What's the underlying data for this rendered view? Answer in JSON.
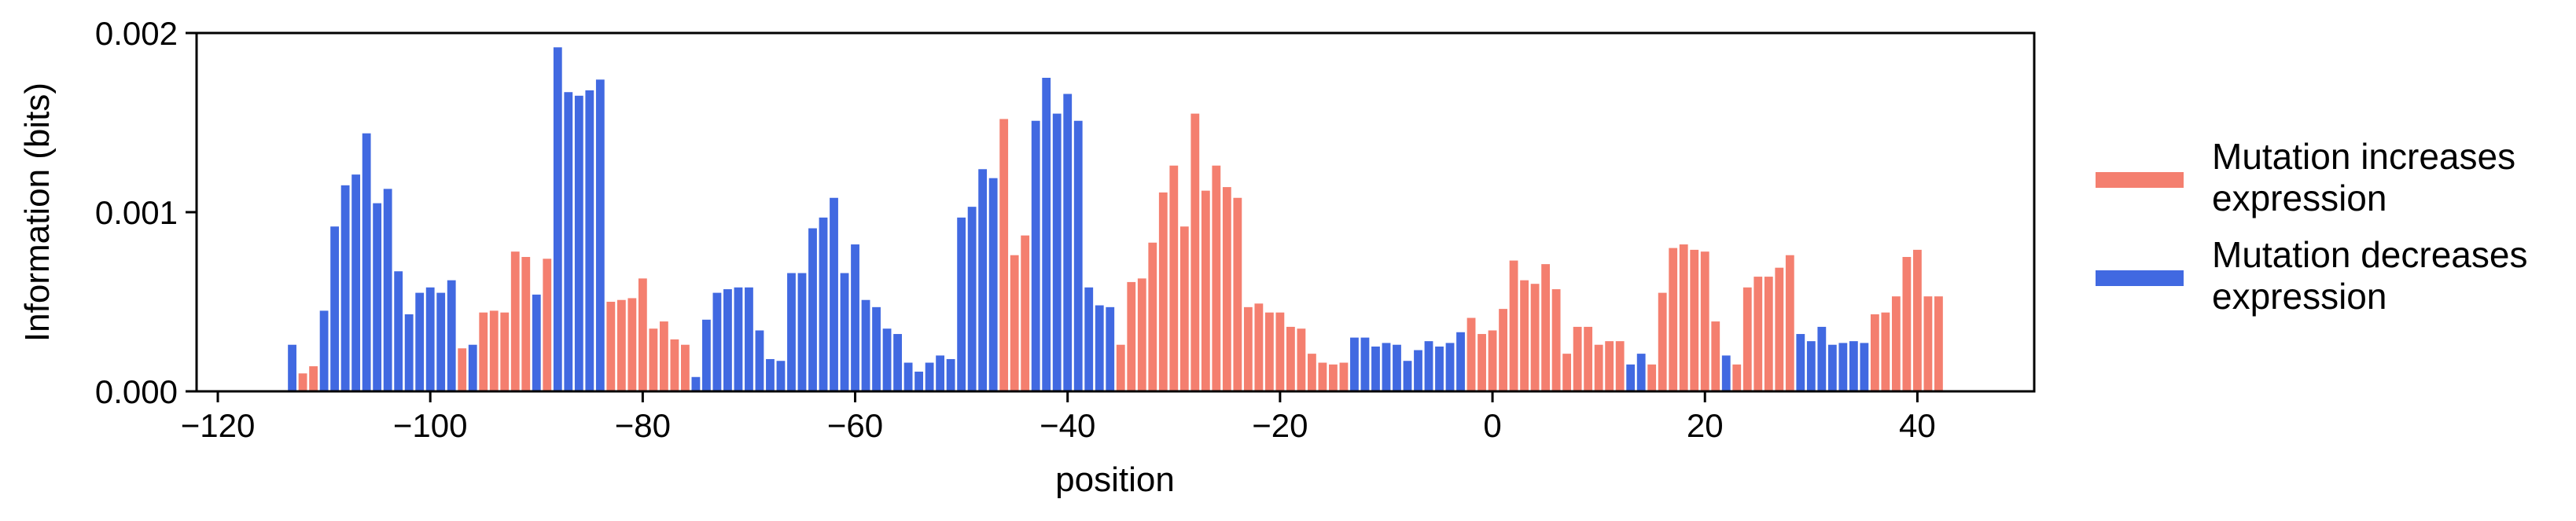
{
  "chart_data": {
    "type": "bar",
    "title": "",
    "xlabel": "position",
    "ylabel": "Information (bits)",
    "xlim": [
      -122,
      51
    ],
    "ylim": [
      0,
      0.002
    ],
    "xticks": [
      -120,
      -100,
      -80,
      -60,
      -40,
      -20,
      0,
      20,
      40
    ],
    "xtick_labels": [
      "−120",
      "−100",
      "−80",
      "−60",
      "−40",
      "−20",
      "0",
      "20",
      "40"
    ],
    "yticks": [
      0,
      0.001,
      0.002
    ],
    "ytick_labels": [
      "0.000",
      "0.001",
      "0.002"
    ],
    "grid": false,
    "legend_position": "right",
    "colors": {
      "increase": "#F47F6F",
      "decrease": "#4169E1"
    },
    "series": [
      {
        "name": "Mutation increases expression",
        "label_lines": [
          "Mutation increases",
          "expression"
        ],
        "color": "#F47F6F"
      },
      {
        "name": "Mutation decreases expression",
        "label_lines": [
          "Mutation decreases",
          "expression"
        ],
        "color": "#4169E1"
      }
    ],
    "x": [
      -113,
      -112,
      -111,
      -110,
      -109,
      -108,
      -107,
      -106,
      -105,
      -104,
      -103,
      -102,
      -101,
      -100,
      -99,
      -98,
      -97,
      -96,
      -95,
      -94,
      -93,
      -92,
      -91,
      -90,
      -89,
      -88,
      -87,
      -86,
      -85,
      -84,
      -83,
      -82,
      -81,
      -80,
      -79,
      -78,
      -77,
      -76,
      -75,
      -74,
      -73,
      -72,
      -71,
      -70,
      -69,
      -68,
      -67,
      -66,
      -65,
      -64,
      -63,
      -62,
      -61,
      -60,
      -59,
      -58,
      -57,
      -56,
      -55,
      -54,
      -53,
      -52,
      -51,
      -50,
      -49,
      -48,
      -47,
      -46,
      -45,
      -44,
      -43,
      -42,
      -41,
      -40,
      -39,
      -38,
      -37,
      -36,
      -35,
      -34,
      -33,
      -32,
      -31,
      -30,
      -29,
      -28,
      -27,
      -26,
      -25,
      -24,
      -23,
      -22,
      -21,
      -20,
      -19,
      -18,
      -17,
      -16,
      -15,
      -14,
      -13,
      -12,
      -11,
      -10,
      -9,
      -8,
      -7,
      -6,
      -5,
      -4,
      -3,
      -2,
      -1,
      0,
      1,
      2,
      3,
      4,
      5,
      6,
      7,
      8,
      9,
      10,
      11,
      12,
      13,
      14,
      15,
      16,
      17,
      18,
      19,
      20,
      21,
      22,
      23,
      24,
      25,
      26,
      27,
      28,
      29,
      30,
      31,
      32,
      33,
      34,
      35,
      36,
      37,
      38,
      39,
      40,
      41,
      42
    ],
    "values": [
      0.00026,
      0.0001,
      0.00014,
      0.00045,
      0.00092,
      0.00115,
      0.00121,
      0.00144,
      0.00105,
      0.00113,
      0.00067,
      0.00043,
      0.00055,
      0.00058,
      0.00055,
      0.00062,
      0.00024,
      0.00026,
      0.00044,
      0.00045,
      0.00044,
      0.00078,
      0.00075,
      0.00054,
      0.00074,
      0.00192,
      0.00167,
      0.00165,
      0.00168,
      0.00174,
      0.0005,
      0.00051,
      0.00052,
      0.00063,
      0.00035,
      0.00039,
      0.00029,
      0.00026,
      8e-05,
      0.0004,
      0.00055,
      0.00057,
      0.00058,
      0.00058,
      0.00034,
      0.00018,
      0.00017,
      0.00066,
      0.00066,
      0.00091,
      0.00097,
      0.00108,
      0.00066,
      0.00082,
      0.00051,
      0.00047,
      0.00035,
      0.00032,
      0.00016,
      0.00011,
      0.00016,
      0.0002,
      0.00018,
      0.00097,
      0.00103,
      0.00124,
      0.00119,
      0.00152,
      0.00076,
      0.00087,
      0.00151,
      0.00175,
      0.00155,
      0.00166,
      0.00151,
      0.00058,
      0.00048,
      0.00047,
      0.00026,
      0.00061,
      0.00063,
      0.00083,
      0.00111,
      0.00126,
      0.00092,
      0.00155,
      0.00112,
      0.00126,
      0.00114,
      0.00108,
      0.00047,
      0.00049,
      0.00044,
      0.00044,
      0.00036,
      0.00035,
      0.00021,
      0.00016,
      0.00015,
      0.00016,
      0.0003,
      0.0003,
      0.00025,
      0.00027,
      0.00026,
      0.00017,
      0.00023,
      0.00028,
      0.00025,
      0.00027,
      0.00033,
      0.00041,
      0.00032,
      0.00034,
      0.00046,
      0.00073,
      0.00062,
      0.0006,
      0.00071,
      0.00057,
      0.00021,
      0.00036,
      0.00036,
      0.00026,
      0.00028,
      0.00028,
      0.00015,
      0.00021,
      0.00015,
      0.00055,
      0.0008,
      0.00082,
      0.00079,
      0.00078,
      0.00039,
      0.0002,
      0.00015,
      0.00058,
      0.00064,
      0.00064,
      0.00069,
      0.00076,
      0.00032,
      0.00028,
      0.00036,
      0.00026,
      0.00027,
      0.00028,
      0.00027,
      0.00043,
      0.00044,
      0.00053,
      0.00075,
      0.00079,
      0.00053,
      0.00053
    ],
    "effect": [
      "d",
      "i",
      "i",
      "d",
      "d",
      "d",
      "d",
      "d",
      "d",
      "d",
      "d",
      "d",
      "d",
      "d",
      "d",
      "d",
      "i",
      "d",
      "i",
      "i",
      "i",
      "i",
      "i",
      "d",
      "i",
      "d",
      "d",
      "d",
      "d",
      "d",
      "i",
      "i",
      "i",
      "i",
      "i",
      "i",
      "i",
      "i",
      "d",
      "d",
      "d",
      "d",
      "d",
      "d",
      "d",
      "d",
      "d",
      "d",
      "d",
      "d",
      "d",
      "d",
      "d",
      "d",
      "d",
      "d",
      "d",
      "d",
      "d",
      "d",
      "d",
      "d",
      "d",
      "d",
      "d",
      "d",
      "d",
      "i",
      "i",
      "i",
      "d",
      "d",
      "d",
      "d",
      "d",
      "d",
      "d",
      "d",
      "i",
      "i",
      "i",
      "i",
      "i",
      "i",
      "i",
      "i",
      "i",
      "i",
      "i",
      "i",
      "i",
      "i",
      "i",
      "i",
      "i",
      "i",
      "i",
      "i",
      "i",
      "i",
      "d",
      "d",
      "d",
      "d",
      "d",
      "d",
      "d",
      "d",
      "d",
      "d",
      "d",
      "i",
      "i",
      "i",
      "i",
      "i",
      "i",
      "i",
      "i",
      "i",
      "i",
      "i",
      "i",
      "i",
      "i",
      "i",
      "d",
      "d",
      "i",
      "i",
      "i",
      "i",
      "i",
      "i",
      "i",
      "d",
      "i",
      "i",
      "i",
      "i",
      "i",
      "i",
      "d",
      "d",
      "d",
      "d",
      "d",
      "d",
      "d",
      "i",
      "i",
      "i",
      "i",
      "i",
      "i",
      "i"
    ]
  }
}
